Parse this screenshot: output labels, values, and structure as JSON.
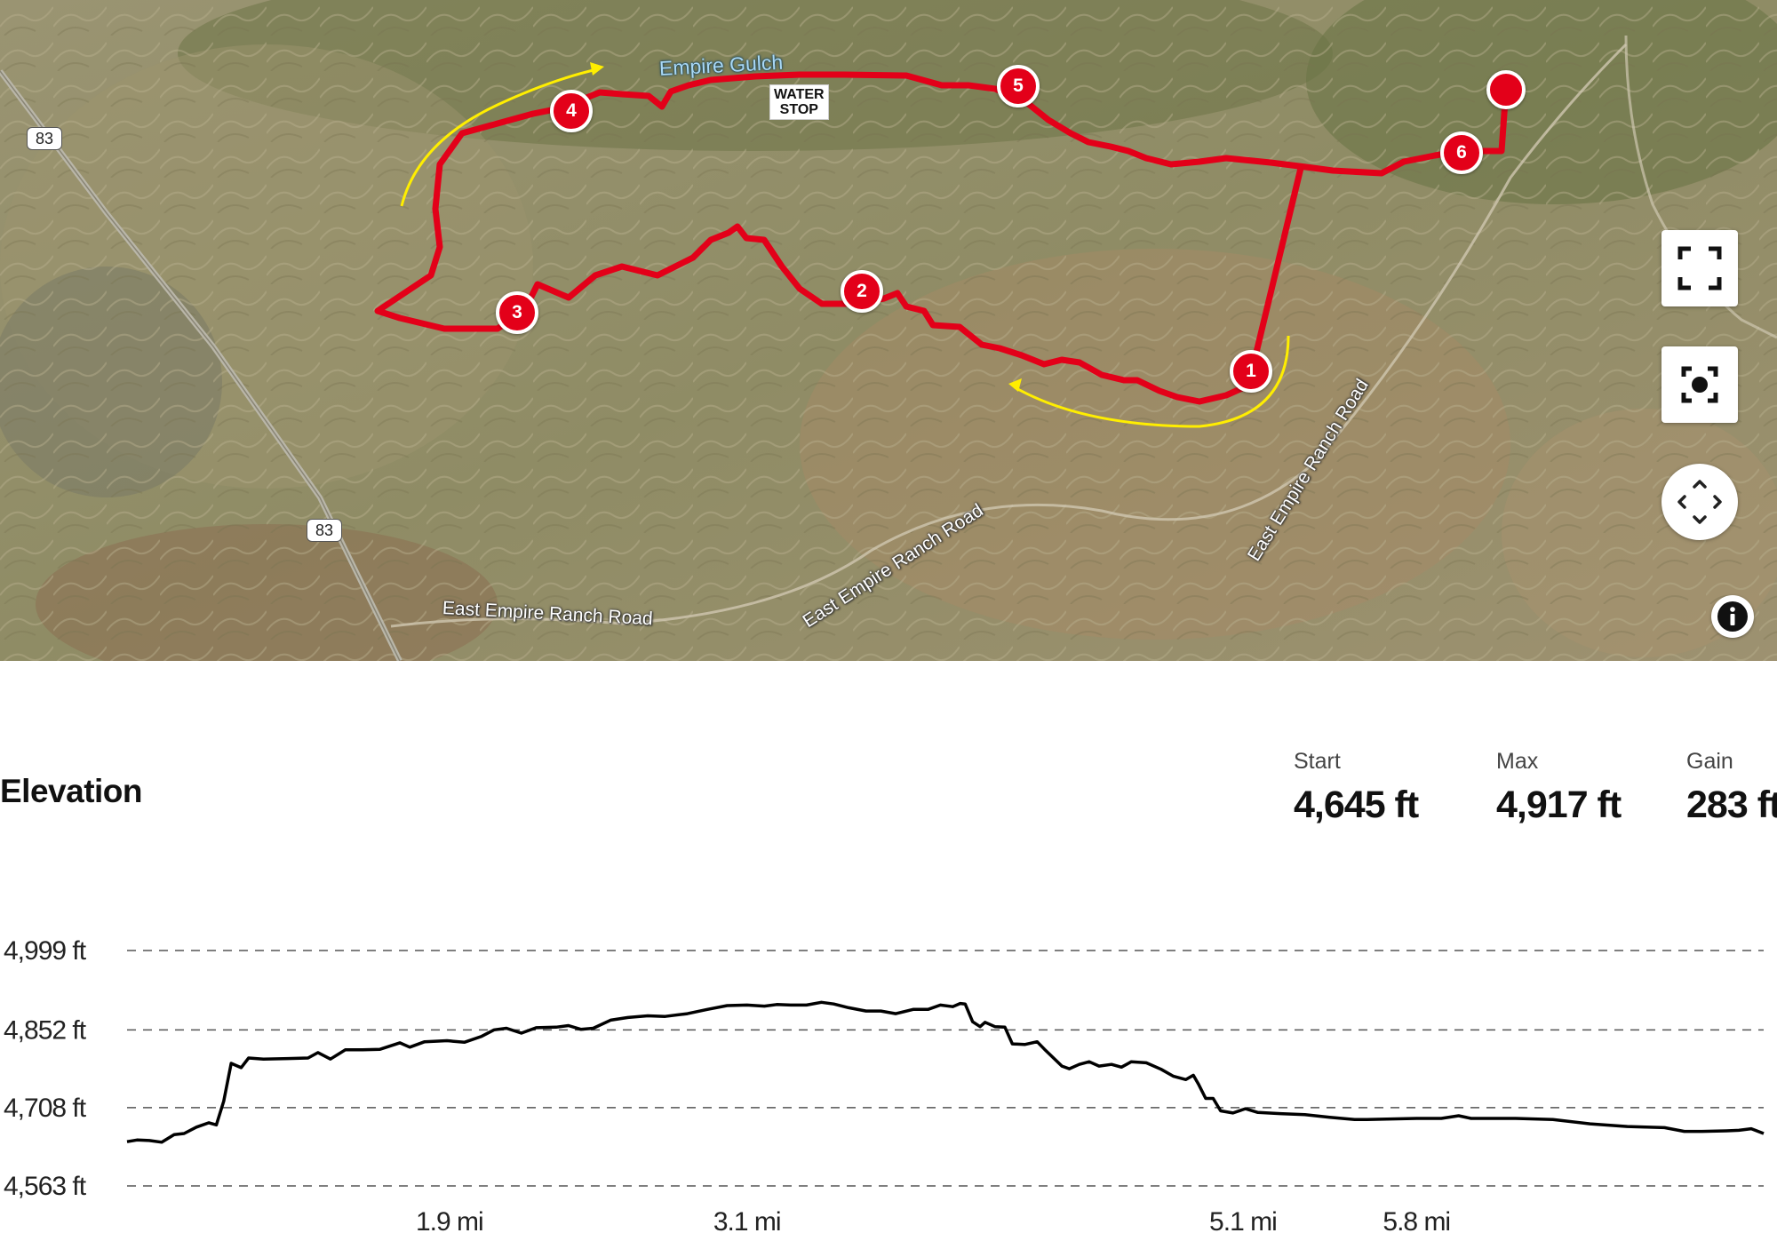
{
  "map": {
    "route_color": "#e30019",
    "direction_arrow_color": "#ffee00",
    "waypoints": [
      "1",
      "2",
      "3",
      "4",
      "5",
      "6"
    ],
    "labels": {
      "gulch": "Empire Gulch",
      "water_stop_line1": "WATER",
      "water_stop_line2": "STOP",
      "road_1": "East Empire Ranch Road",
      "road_2": "East Empire Ranch Road",
      "road_3": "East Empire Ranch Road",
      "highway_1": "83",
      "highway_2": "83"
    },
    "controls": {
      "fullscreen_icon": "fullscreen-icon",
      "recenter_icon": "recenter-icon",
      "pan_icon": "pan-arrows-icon",
      "info_icon": "info-icon"
    }
  },
  "elevation": {
    "title": "Elevation",
    "stats": [
      {
        "label": "Start",
        "value": "4,645 ft"
      },
      {
        "label": "Max",
        "value": "4,917 ft"
      },
      {
        "label": "Gain",
        "value": "283 ft"
      }
    ]
  },
  "chart_data": {
    "type": "area",
    "title": "Elevation",
    "xlabel": "",
    "ylabel": "",
    "y_ticks": [
      "4,999 ft",
      "4,852 ft",
      "4,708 ft",
      "4,563 ft"
    ],
    "y_tick_values": [
      4999,
      4852,
      4708,
      4563
    ],
    "x_ticks": [
      "1.9 mi",
      "3.1 mi",
      "5.1 mi",
      "5.8 mi"
    ],
    "x_tick_values": [
      1.9,
      3.1,
      5.1,
      5.8
    ],
    "ylim": [
      4563,
      4999
    ],
    "xlim": [
      0.6,
      7.2
    ],
    "grid": true,
    "line_color": "#000000",
    "series": [
      {
        "values": [
          [
            0.6,
            4645
          ],
          [
            0.64,
            4648
          ],
          [
            0.69,
            4647
          ],
          [
            0.74,
            4644
          ],
          [
            0.79,
            4658
          ],
          [
            0.83,
            4660
          ],
          [
            0.88,
            4672
          ],
          [
            0.93,
            4680
          ],
          [
            0.96,
            4676
          ],
          [
            0.99,
            4720
          ],
          [
            1.02,
            4790
          ],
          [
            1.06,
            4782
          ],
          [
            1.09,
            4800
          ],
          [
            1.15,
            4798
          ],
          [
            1.25,
            4799
          ],
          [
            1.33,
            4800
          ],
          [
            1.37,
            4810
          ],
          [
            1.42,
            4798
          ],
          [
            1.48,
            4815
          ],
          [
            1.55,
            4815
          ],
          [
            1.62,
            4816
          ],
          [
            1.7,
            4828
          ],
          [
            1.74,
            4820
          ],
          [
            1.8,
            4830
          ],
          [
            1.89,
            4832
          ],
          [
            1.96,
            4829
          ],
          [
            2.03,
            4840
          ],
          [
            2.08,
            4852
          ],
          [
            2.13,
            4855
          ],
          [
            2.19,
            4846
          ],
          [
            2.25,
            4856
          ],
          [
            2.33,
            4857
          ],
          [
            2.38,
            4860
          ],
          [
            2.43,
            4853
          ],
          [
            2.48,
            4855
          ],
          [
            2.55,
            4870
          ],
          [
            2.62,
            4875
          ],
          [
            2.7,
            4878
          ],
          [
            2.77,
            4877
          ],
          [
            2.86,
            4882
          ],
          [
            2.94,
            4890
          ],
          [
            3.02,
            4897
          ],
          [
            3.1,
            4898
          ],
          [
            3.17,
            4896
          ],
          [
            3.22,
            4899
          ],
          [
            3.28,
            4898
          ],
          [
            3.34,
            4898
          ],
          [
            3.4,
            4903
          ],
          [
            3.45,
            4900
          ],
          [
            3.51,
            4893
          ],
          [
            3.58,
            4887
          ],
          [
            3.64,
            4887
          ],
          [
            3.7,
            4882
          ],
          [
            3.77,
            4890
          ],
          [
            3.83,
            4890
          ],
          [
            3.88,
            4898
          ],
          [
            3.93,
            4895
          ],
          [
            3.96,
            4901
          ],
          [
            3.98,
            4900
          ],
          [
            4.01,
            4867
          ],
          [
            4.04,
            4858
          ],
          [
            4.06,
            4866
          ],
          [
            4.1,
            4858
          ],
          [
            4.14,
            4857
          ],
          [
            4.17,
            4826
          ],
          [
            4.22,
            4825
          ],
          [
            4.27,
            4830
          ],
          [
            4.3,
            4816
          ],
          [
            4.37,
            4785
          ],
          [
            4.4,
            4780
          ],
          [
            4.44,
            4788
          ],
          [
            4.48,
            4793
          ],
          [
            4.52,
            4785
          ],
          [
            4.57,
            4788
          ],
          [
            4.61,
            4783
          ],
          [
            4.65,
            4793
          ],
          [
            4.71,
            4791
          ],
          [
            4.77,
            4779
          ],
          [
            4.82,
            4766
          ],
          [
            4.87,
            4760
          ],
          [
            4.9,
            4768
          ],
          [
            4.92,
            4752
          ],
          [
            4.95,
            4725
          ],
          [
            4.98,
            4725
          ],
          [
            5.01,
            4702
          ],
          [
            5.06,
            4698
          ],
          [
            5.11,
            4706
          ],
          [
            5.16,
            4699
          ],
          [
            5.25,
            4697
          ],
          [
            5.35,
            4695
          ],
          [
            5.45,
            4690
          ],
          [
            5.55,
            4686
          ],
          [
            5.6,
            4686
          ],
          [
            5.7,
            4687
          ],
          [
            5.8,
            4688
          ],
          [
            5.9,
            4688
          ],
          [
            5.97,
            4693
          ],
          [
            6.02,
            4688
          ],
          [
            6.12,
            4688
          ],
          [
            6.2,
            4688
          ],
          [
            6.35,
            4686
          ],
          [
            6.5,
            4678
          ],
          [
            6.65,
            4673
          ],
          [
            6.8,
            4671
          ],
          [
            6.88,
            4664
          ],
          [
            6.95,
            4664
          ],
          [
            7.05,
            4665
          ],
          [
            7.1,
            4666
          ],
          [
            7.15,
            4669
          ],
          [
            7.2,
            4660
          ]
        ]
      }
    ]
  }
}
